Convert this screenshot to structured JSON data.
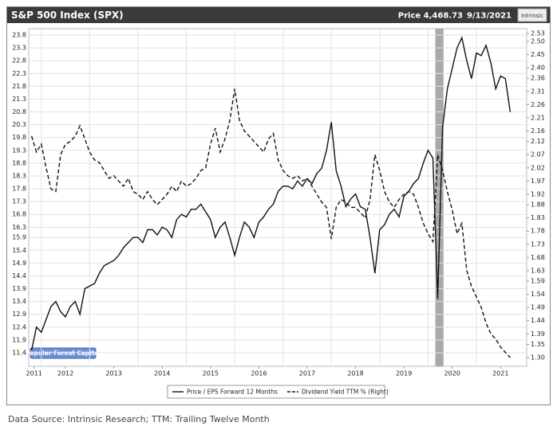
{
  "header": {
    "title": "S&P 500 Index (SPX)",
    "price": "Price 4,468.73",
    "date": "9/13/2021",
    "logo": "Intrinsic"
  },
  "watermark": "Popular Forest Capital",
  "source": "Data Source: Intrinsic Research; TTM: Trailing Twelve Month",
  "chart_data": {
    "type": "line",
    "x": [
      2011.8,
      2011.9,
      2012.0,
      2012.1,
      2012.2,
      2012.3,
      2012.4,
      2012.5,
      2012.6,
      2012.7,
      2012.8,
      2012.9,
      2013.0,
      2013.1,
      2013.2,
      2013.3,
      2013.4,
      2013.5,
      2013.6,
      2013.7,
      2013.8,
      2013.9,
      2014.0,
      2014.1,
      2014.2,
      2014.3,
      2014.4,
      2014.5,
      2014.6,
      2014.7,
      2014.8,
      2014.9,
      2015.0,
      2015.1,
      2015.2,
      2015.3,
      2015.4,
      2015.5,
      2015.6,
      2015.7,
      2015.8,
      2015.9,
      2016.0,
      2016.1,
      2016.2,
      2016.3,
      2016.4,
      2016.5,
      2016.6,
      2016.7,
      2016.8,
      2016.9,
      2017.0,
      2017.1,
      2017.2,
      2017.3,
      2017.4,
      2017.5,
      2017.6,
      2017.7,
      2017.8,
      2017.9,
      2018.0,
      2018.1,
      2018.2,
      2018.3,
      2018.4,
      2018.5,
      2018.6,
      2018.7,
      2018.8,
      2018.9,
      2019.0,
      2019.1,
      2019.2,
      2019.3,
      2019.4,
      2019.5,
      2019.6,
      2019.7,
      2019.8,
      2019.9,
      2020.0,
      2020.1,
      2020.2,
      2020.3,
      2020.4,
      2020.5,
      2020.6,
      2020.7,
      2020.8,
      2020.9,
      2021.0,
      2021.1,
      2021.2,
      2021.3,
      2021.4,
      2021.5,
      2021.6,
      2021.7
    ],
    "series": [
      {
        "name": "Price / EPS Forward 12 Months",
        "color": "#111111",
        "line_style": "solid",
        "values": [
          11.5,
          12.4,
          12.2,
          12.7,
          13.2,
          13.4,
          13.0,
          12.8,
          13.2,
          13.4,
          12.9,
          13.9,
          14.0,
          14.1,
          14.5,
          14.8,
          14.9,
          15.0,
          15.2,
          15.5,
          15.7,
          15.9,
          15.9,
          15.7,
          16.2,
          16.2,
          16.0,
          16.3,
          16.2,
          15.9,
          16.6,
          16.8,
          16.7,
          17.0,
          17.0,
          17.2,
          16.9,
          16.6,
          15.9,
          16.3,
          16.5,
          15.9,
          15.2,
          15.9,
          16.5,
          16.3,
          15.9,
          16.5,
          16.7,
          17.0,
          17.2,
          17.7,
          17.9,
          17.9,
          17.8,
          18.1,
          17.9,
          18.2,
          18.0,
          18.4,
          18.6,
          19.3,
          20.4,
          18.5,
          17.9,
          17.1,
          17.4,
          17.6,
          17.1,
          17.0,
          15.9,
          14.5,
          16.2,
          16.4,
          16.8,
          17.0,
          16.7,
          17.5,
          17.7,
          18.0,
          18.2,
          18.8,
          19.3,
          19.0,
          13.5,
          20.2,
          21.7,
          22.5,
          23.3,
          23.7,
          22.8,
          22.1,
          23.1,
          23.0,
          23.4,
          22.7,
          21.7,
          22.2,
          22.1,
          20.8
        ]
      },
      {
        "name": "Dividend Yield TTM % (Right)",
        "color": "#111111",
        "line_style": "dashed",
        "axis": "y2",
        "values": [
          2.14,
          2.08,
          2.11,
          2.02,
          1.94,
          1.93,
          2.07,
          2.11,
          2.12,
          2.14,
          2.18,
          2.13,
          2.08,
          2.05,
          2.04,
          2.01,
          1.98,
          1.99,
          1.97,
          1.95,
          1.98,
          1.93,
          1.92,
          1.9,
          1.93,
          1.9,
          1.88,
          1.9,
          1.92,
          1.95,
          1.93,
          1.97,
          1.95,
          1.96,
          1.98,
          2.01,
          2.02,
          2.11,
          2.17,
          2.08,
          2.13,
          2.2,
          2.32,
          2.2,
          2.16,
          2.14,
          2.12,
          2.1,
          2.08,
          2.13,
          2.15,
          2.05,
          2.01,
          1.99,
          1.98,
          1.99,
          1.97,
          1.98,
          1.95,
          1.92,
          1.89,
          1.87,
          1.75,
          1.87,
          1.9,
          1.89,
          1.87,
          1.87,
          1.85,
          1.83,
          1.9,
          2.07,
          2.01,
          1.93,
          1.89,
          1.87,
          1.9,
          1.92,
          1.93,
          1.92,
          1.87,
          1.81,
          1.77,
          1.74,
          2.07,
          2.01,
          1.93,
          1.86,
          1.77,
          1.81,
          1.63,
          1.57,
          1.53,
          1.49,
          1.43,
          1.39,
          1.37,
          1.34,
          1.32,
          1.3
        ]
      }
    ],
    "xlim": [
      2011.74,
      2022.04
    ],
    "xticks": [
      {
        "value": 2011.85,
        "label": "2011"
      },
      {
        "value": 2012.5,
        "label": "2012"
      },
      {
        "value": 2013.5,
        "label": "2013"
      },
      {
        "value": 2014.5,
        "label": "2014"
      },
      {
        "value": 2015.5,
        "label": "2015"
      },
      {
        "value": 2016.5,
        "label": "2016"
      },
      {
        "value": 2017.5,
        "label": "2017"
      },
      {
        "value": 2018.5,
        "label": "2018"
      },
      {
        "value": 2019.5,
        "label": "2019"
      },
      {
        "value": 2020.5,
        "label": "2020"
      },
      {
        "value": 2021.5,
        "label": "2021"
      }
    ],
    "x_gridlines": [
      2012,
      2013,
      2014,
      2015,
      2016,
      2017,
      2018,
      2019,
      2020,
      2021
    ],
    "ylim": [
      10.87,
      24.05
    ],
    "yticks": [
      23.8,
      23.3,
      22.8,
      22.3,
      21.8,
      21.3,
      20.8,
      20.3,
      19.8,
      19.3,
      18.8,
      18.3,
      17.8,
      17.3,
      16.8,
      16.3,
      15.9,
      15.4,
      14.9,
      14.4,
      13.9,
      13.4,
      12.9,
      12.4,
      11.9,
      11.4
    ],
    "y2lim": [
      1.267,
      2.548
    ],
    "y2ticks": [
      2.53,
      {
        "value": 2.5,
        "label": "2.50"
      },
      2.45,
      {
        "value": 2.4,
        "label": "2.40"
      },
      2.36,
      2.31,
      2.26,
      2.21,
      2.16,
      2.12,
      2.07,
      2.02,
      1.97,
      1.92,
      1.88,
      1.83,
      1.78,
      1.73,
      1.68,
      1.63,
      1.59,
      1.54,
      1.49,
      1.44,
      1.39,
      1.35,
      {
        "value": 1.3,
        "label": "1.30"
      }
    ],
    "shaded_regions": [
      [
        2020.15,
        2020.32
      ]
    ],
    "shade_color": "#a9a9a9",
    "grid": true,
    "legend": "bottom"
  }
}
